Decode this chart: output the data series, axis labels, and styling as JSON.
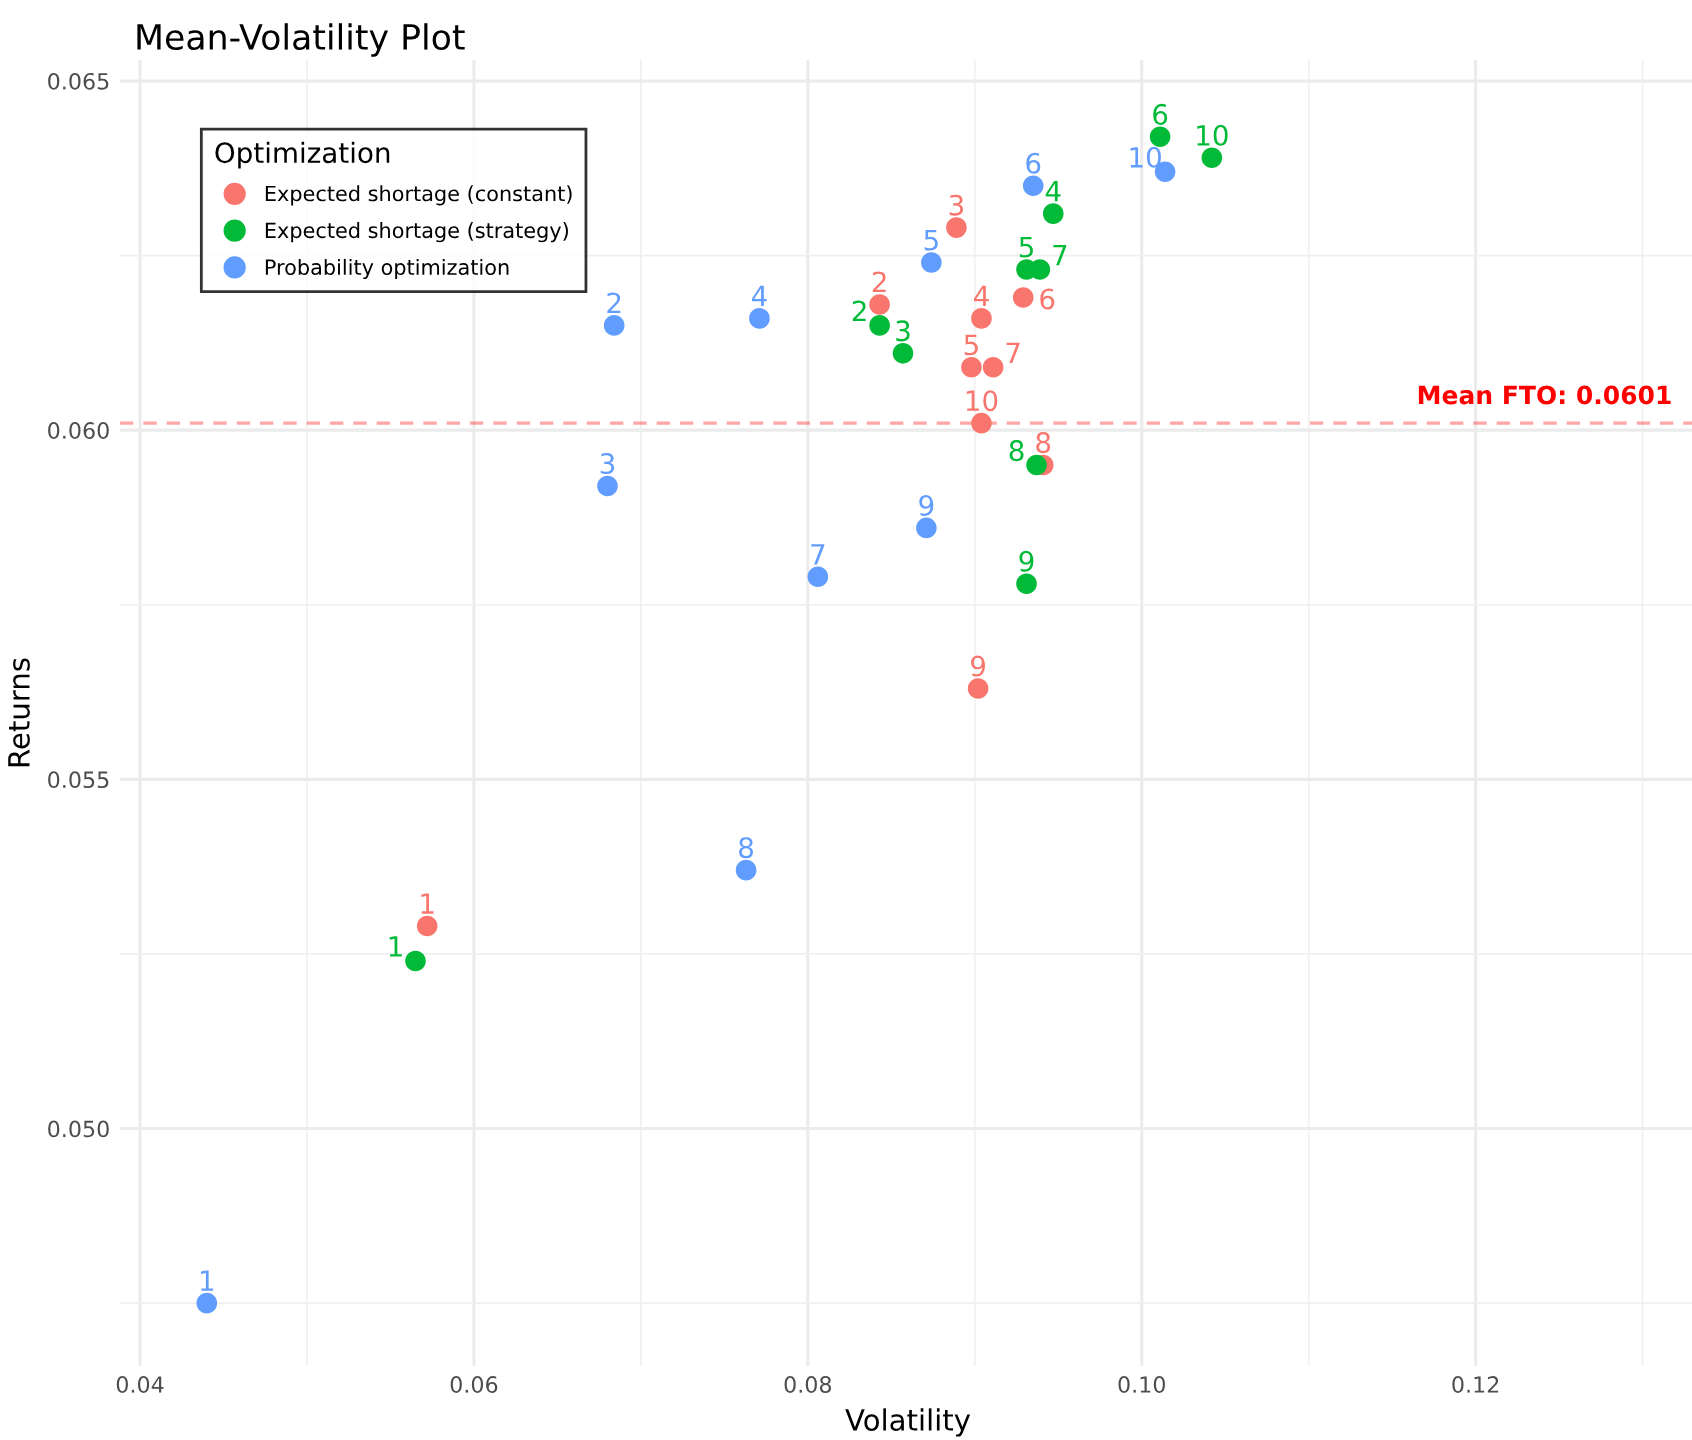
{
  "chart_data": {
    "type": "scatter",
    "title": "Mean-Volatility Plot",
    "xlabel": "Volatility",
    "ylabel": "Returns",
    "legend_title": "Optimization",
    "legend": "top left",
    "grid": true,
    "marker": "circle",
    "xlim": [
      0.0388,
      0.1332
    ],
    "ylim": [
      0.0466,
      0.0653
    ],
    "xticks": [
      0.04,
      0.06,
      0.08,
      {
        "value": 0.1,
        "label": "0.10"
      },
      0.12
    ],
    "yticks": [
      {
        "value": 0.05,
        "label": "0.050"
      },
      0.055,
      {
        "value": 0.06,
        "label": "0.060"
      },
      0.065
    ],
    "ref_lines": [
      {
        "axis": "y",
        "value": 0.0601,
        "label": "Mean FTO: 0.0601",
        "color": "#ff0000",
        "line_style": "dashed"
      }
    ],
    "series": [
      {
        "name": "Expected shortage (constant)",
        "color": "#f8766d",
        "x": [
          0.0572,
          0.0843,
          0.0889,
          0.0904,
          0.0898,
          0.0929,
          0.0911,
          0.0941,
          0.0902,
          0.0904
        ],
        "values": [
          0.0529,
          0.0618,
          0.0629,
          0.0616,
          0.0609,
          0.0619,
          0.0609,
          0.0595,
          0.0563,
          0.0601
        ]
      },
      {
        "name": "Expected shortage (strategy)",
        "color": "#00ba38",
        "x": [
          0.0565,
          0.0843,
          0.0857,
          0.0947,
          0.0931,
          0.1011,
          0.0939,
          0.0937,
          0.0931,
          0.1042
        ],
        "values": [
          0.0524,
          0.0615,
          0.0611,
          0.0631,
          0.0623,
          0.0642,
          0.0623,
          0.0595,
          0.0578,
          0.0639
        ]
      },
      {
        "name": "Probability optimization",
        "color": "#619cff",
        "x": [
          0.044,
          0.0684,
          0.068,
          0.0771,
          0.0874,
          0.0935,
          0.0806,
          0.0763,
          0.0871,
          0.1014
        ],
        "values": [
          0.0475,
          0.0615,
          0.0592,
          0.0616,
          0.0624,
          0.0635,
          0.0579,
          0.0537,
          0.0586,
          0.0637
        ]
      }
    ],
    "annotations": [
      {
        "text": "1",
        "x": 0.0572,
        "y": 0.0529
      },
      {
        "text": "2",
        "x": 0.0843,
        "y": 0.0618
      },
      {
        "text": "3",
        "x": 0.0889,
        "y": 0.0629
      },
      {
        "text": "4",
        "x": 0.0904,
        "y": 0.0616
      },
      {
        "text": "5",
        "x": 0.0898,
        "y": 0.0609
      },
      {
        "text": "6",
        "x": 0.0929,
        "y": 0.0619
      },
      {
        "text": "7",
        "x": 0.0911,
        "y": 0.0609
      },
      {
        "text": "8",
        "x": 0.0941,
        "y": 0.0595
      },
      {
        "text": "9",
        "x": 0.0902,
        "y": 0.0563
      },
      {
        "text": "10",
        "x": 0.0904,
        "y": 0.0601
      },
      {
        "text": "1",
        "x": 0.0565,
        "y": 0.0524
      },
      {
        "text": "2",
        "x": 0.0843,
        "y": 0.0615
      },
      {
        "text": "3",
        "x": 0.0857,
        "y": 0.0611
      },
      {
        "text": "4",
        "x": 0.0947,
        "y": 0.0631
      },
      {
        "text": "5",
        "x": 0.0931,
        "y": 0.0623
      },
      {
        "text": "6",
        "x": 0.1011,
        "y": 0.0642
      },
      {
        "text": "7",
        "x": 0.0939,
        "y": 0.0623
      },
      {
        "text": "8",
        "x": 0.0937,
        "y": 0.0595
      },
      {
        "text": "9",
        "x": 0.0931,
        "y": 0.0578
      },
      {
        "text": "10",
        "x": 0.1042,
        "y": 0.0639
      },
      {
        "text": "1",
        "x": 0.044,
        "y": 0.0475
      },
      {
        "text": "2",
        "x": 0.0684,
        "y": 0.0615
      },
      {
        "text": "3",
        "x": 0.068,
        "y": 0.0592
      },
      {
        "text": "4",
        "x": 0.0771,
        "y": 0.0616
      },
      {
        "text": "5",
        "x": 0.0874,
        "y": 0.0624
      },
      {
        "text": "6",
        "x": 0.0935,
        "y": 0.0635
      },
      {
        "text": "7",
        "x": 0.0806,
        "y": 0.0579
      },
      {
        "text": "8",
        "x": 0.0763,
        "y": 0.0537
      },
      {
        "text": "9",
        "x": 0.0871,
        "y": 0.0586
      },
      {
        "text": "10",
        "x": 0.1014,
        "y": 0.0637
      }
    ]
  }
}
